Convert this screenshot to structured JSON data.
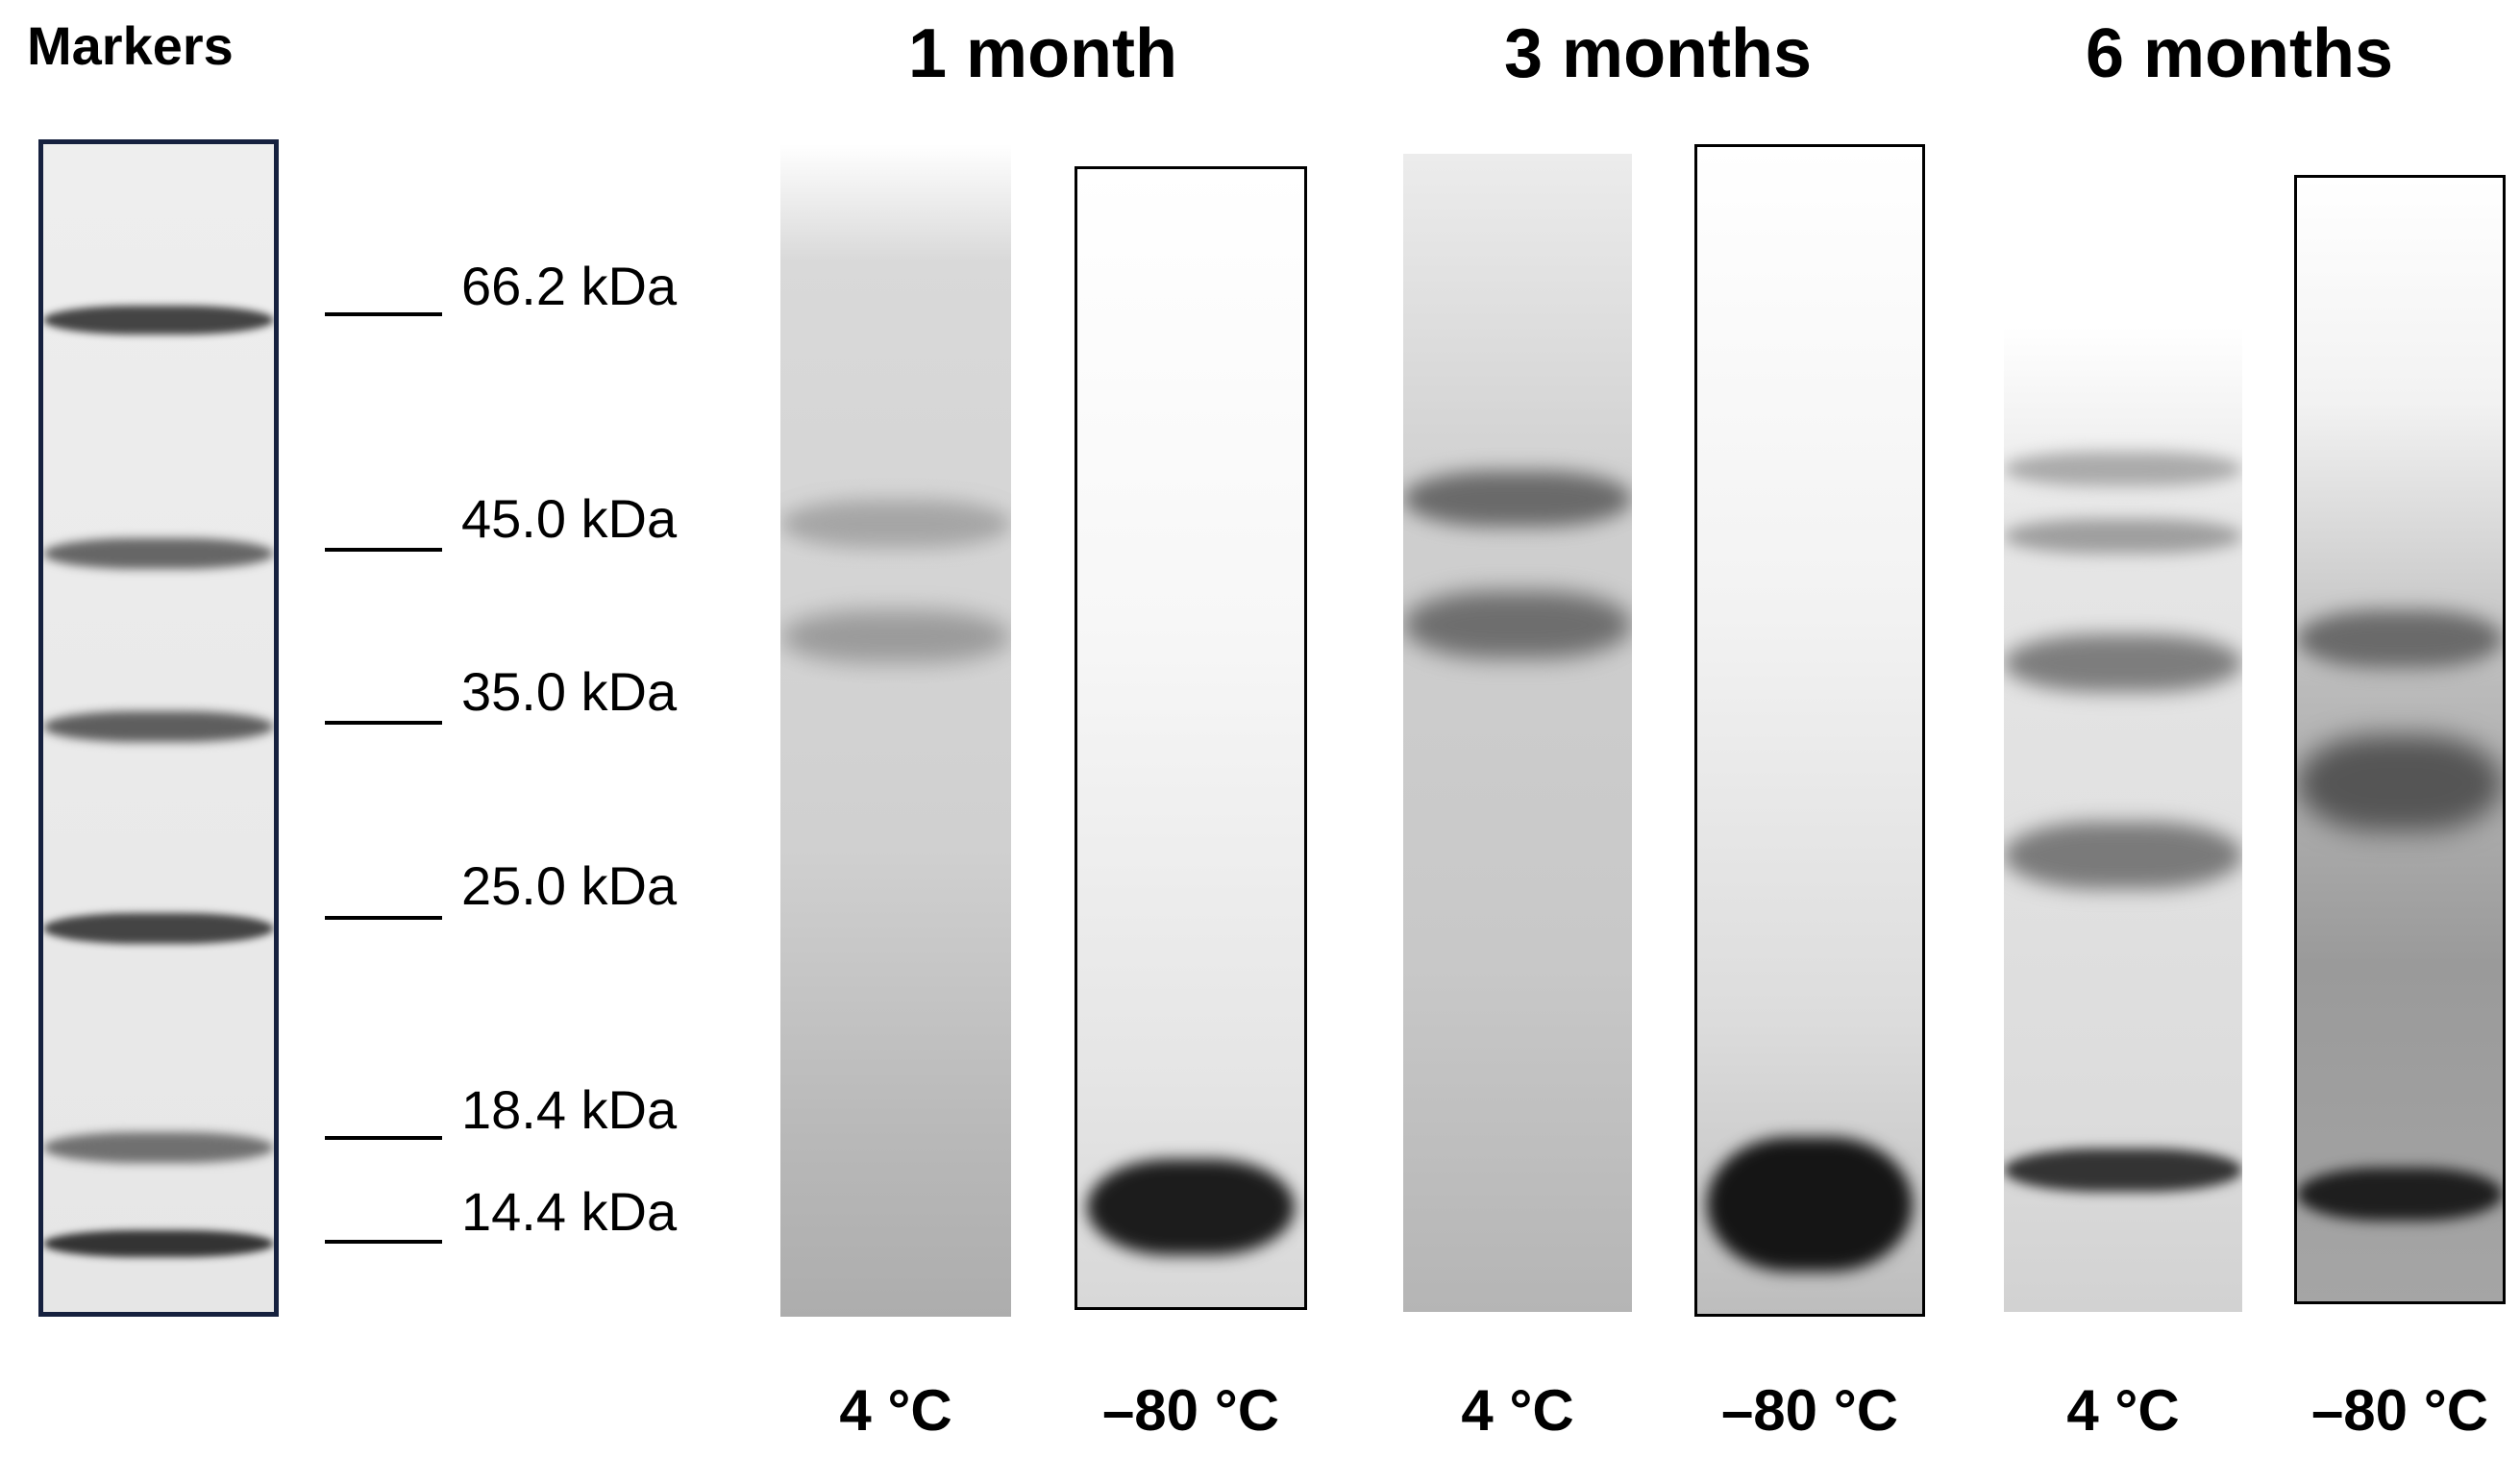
{
  "markers": {
    "title": "Markers",
    "ladder": [
      "66.2 kDa",
      "45.0 kDa",
      "35.0 kDa",
      "25.0 kDa",
      "18.4 kDa",
      "14.4 kDa"
    ]
  },
  "timepoints": [
    "1 month",
    "3 months",
    "6 months"
  ],
  "lanes": [
    {
      "timepoint": "1 month",
      "temp": "4 °C"
    },
    {
      "timepoint": "1 month",
      "temp": "–80 °C"
    },
    {
      "timepoint": "3 months",
      "temp": "4 °C"
    },
    {
      "timepoint": "3 months",
      "temp": "–80 °C"
    },
    {
      "timepoint": "6 months",
      "temp": "4 °C"
    },
    {
      "timepoint": "6 months",
      "temp": "–80 °C"
    }
  ],
  "colors": {
    "marker_frame": "#16213f",
    "band_dark": "#2a2a2a",
    "gel_bg": "#e8e8e8"
  }
}
